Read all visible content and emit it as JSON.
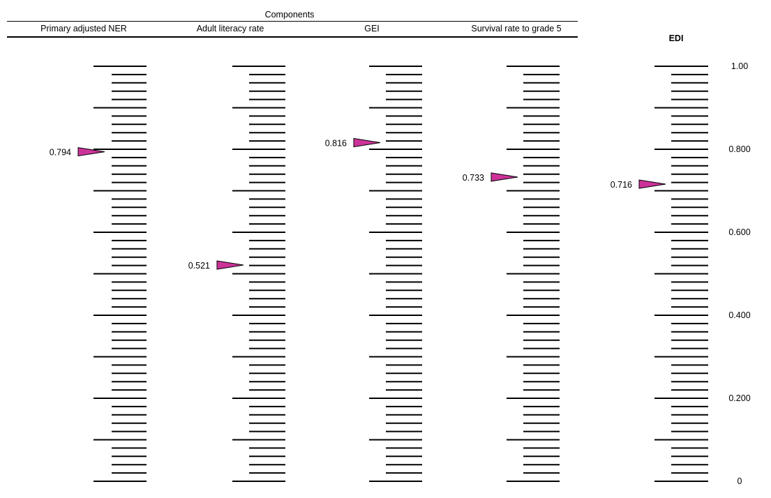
{
  "chart_data": {
    "type": "other",
    "group_title": "Components",
    "columns": [
      {
        "label": "Primary adjusted NER",
        "value": 0.794,
        "value_label": "0.794"
      },
      {
        "label": "Adult  literacy rate",
        "value": 0.521,
        "value_label": "0.521"
      },
      {
        "label": "GEI",
        "value": 0.816,
        "value_label": "0.816"
      },
      {
        "label": "Survival rate to grade 5",
        "value": 0.733,
        "value_label": "0.733"
      }
    ],
    "edi": {
      "label": "EDI",
      "value": 0.716,
      "value_label": "0.716"
    },
    "scale_ticks": [
      {
        "value": 1.0,
        "label": "1.00"
      },
      {
        "value": 0.8,
        "label": "0.800"
      },
      {
        "value": 0.6,
        "label": "0.600"
      },
      {
        "value": 0.4,
        "label": "0.400"
      },
      {
        "value": 0.2,
        "label": "0.200"
      },
      {
        "value": 0.0,
        "label": "0"
      }
    ],
    "ylim": [
      0,
      1
    ],
    "major_step": 0.1,
    "minor_step": 0.02,
    "marker_color": "#cc3399"
  }
}
